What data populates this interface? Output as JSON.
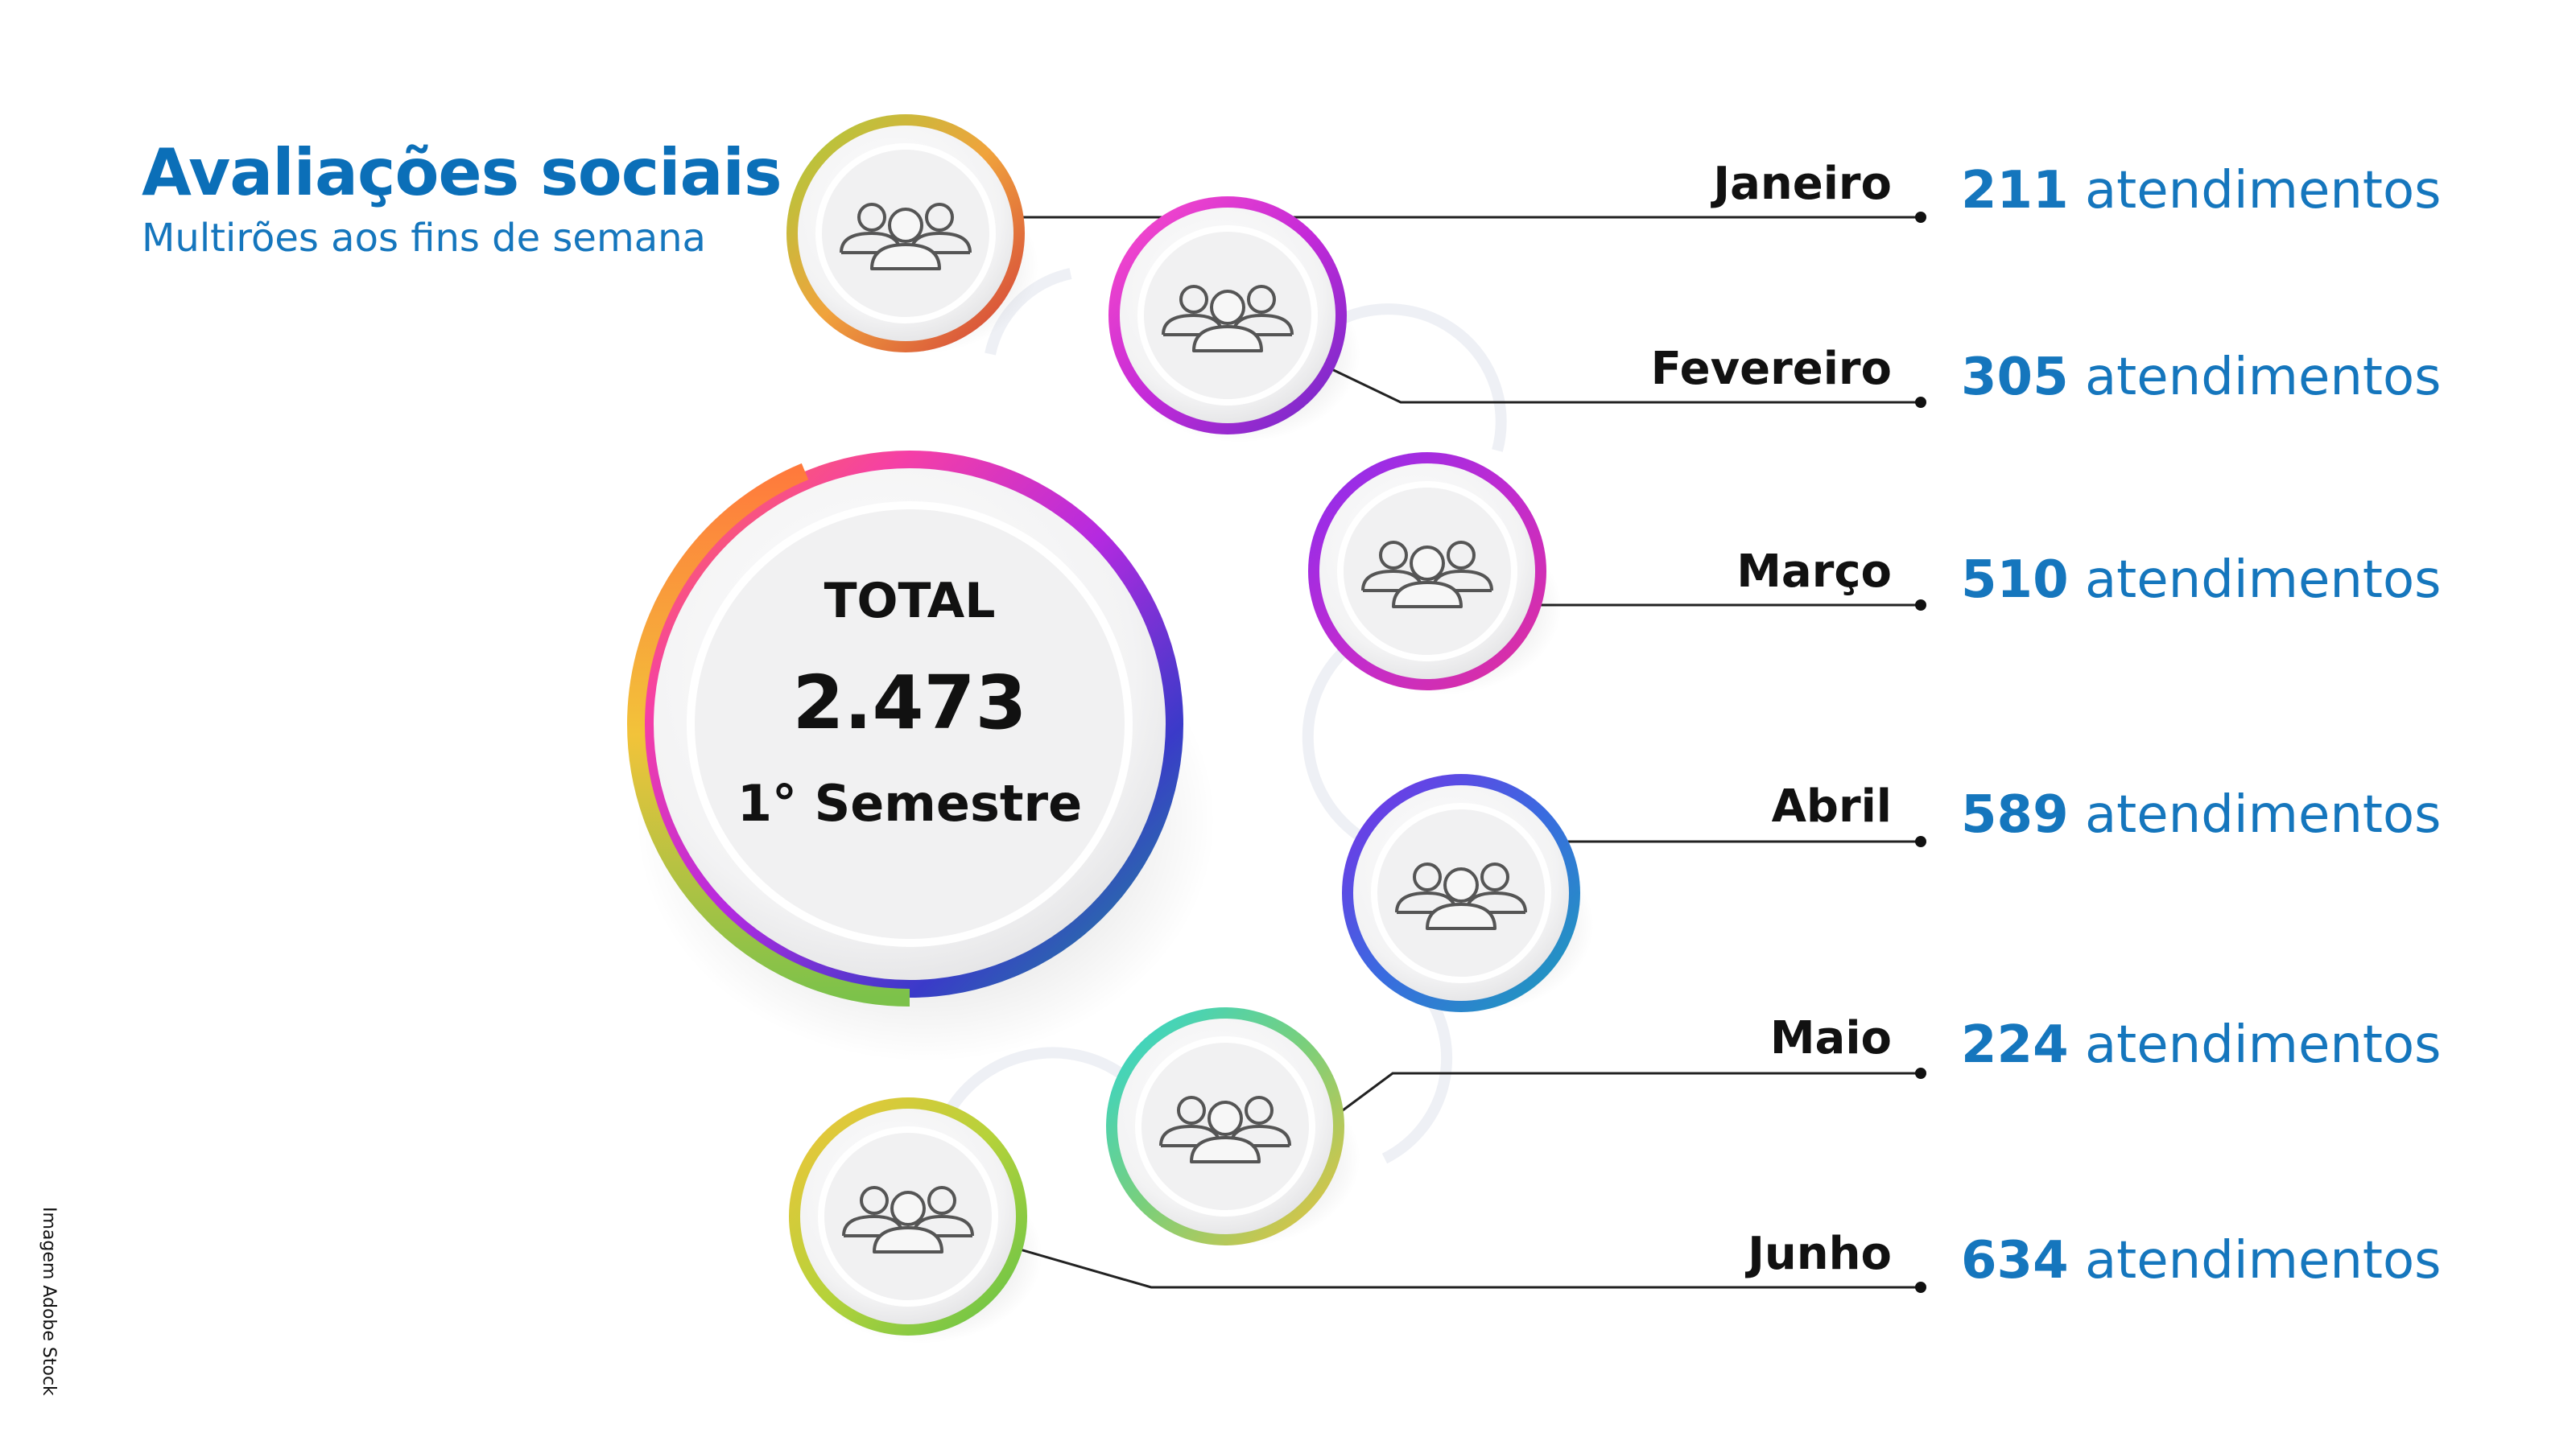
{
  "header": {
    "title": "Avaliações sociais",
    "subtitle": "Multirões aos fins de semana"
  },
  "total": {
    "label": "TOTAL",
    "value": "2.473",
    "period": "1° Semestre"
  },
  "unit_label": "atendimentos",
  "months": [
    {
      "name": "Janeiro",
      "value": "211"
    },
    {
      "name": "Fevereiro",
      "value": "305"
    },
    {
      "name": "Março",
      "value": "510"
    },
    {
      "name": "Abril",
      "value": "589"
    },
    {
      "name": "Maio",
      "value": "224"
    },
    {
      "name": "Junho",
      "value": "634"
    }
  ],
  "credit": "Imagem Adobe Stock",
  "icons": [
    "people-group-icon"
  ],
  "colors": {
    "title": "#0b6fb8",
    "value": "#1576bd",
    "text": "#111111"
  }
}
